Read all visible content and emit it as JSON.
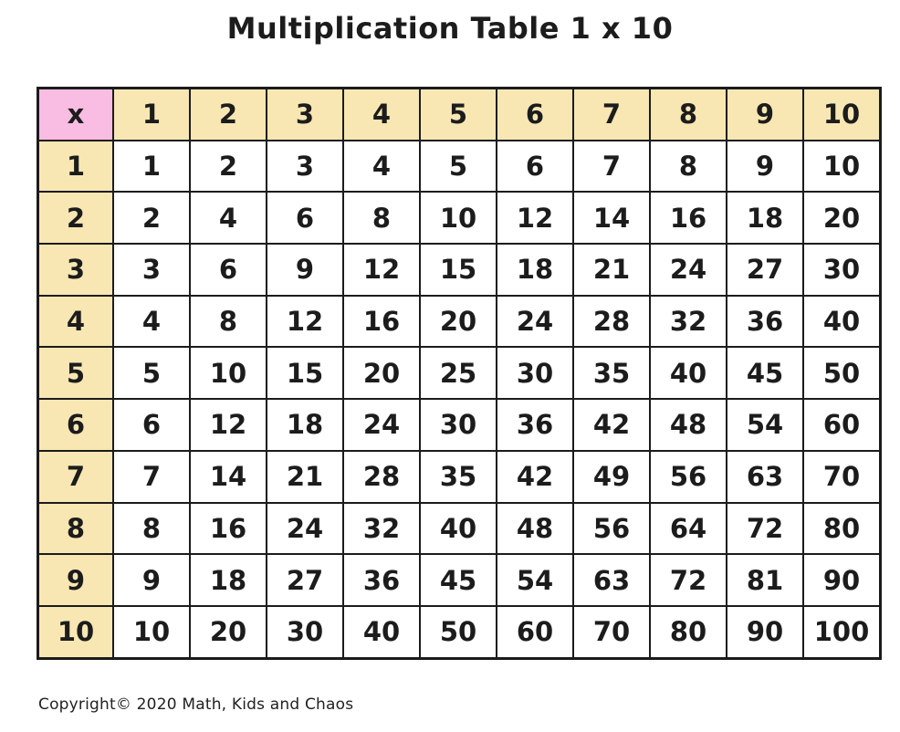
{
  "title": "Multiplication Table 1 x 10",
  "copyright": "Copyright© 2020 Math, Kids and Chaos",
  "colors": {
    "corner_cell_bg": "#f9bce3",
    "header_cell_bg": "#f8e7b3",
    "body_cell_bg": "#ffffff",
    "border": "#1b1b1b",
    "text": "#1c1c1c"
  },
  "table": {
    "corner_label": "x",
    "column_headers": [
      "1",
      "2",
      "3",
      "4",
      "5",
      "6",
      "7",
      "8",
      "9",
      "10"
    ],
    "rows": [
      {
        "label": "1",
        "values": [
          "1",
          "2",
          "3",
          "4",
          "5",
          "6",
          "7",
          "8",
          "9",
          "10"
        ]
      },
      {
        "label": "2",
        "values": [
          "2",
          "4",
          "6",
          "8",
          "10",
          "12",
          "14",
          "16",
          "18",
          "20"
        ]
      },
      {
        "label": "3",
        "values": [
          "3",
          "6",
          "9",
          "12",
          "15",
          "18",
          "21",
          "24",
          "27",
          "30"
        ]
      },
      {
        "label": "4",
        "values": [
          "4",
          "8",
          "12",
          "16",
          "20",
          "24",
          "28",
          "32",
          "36",
          "40"
        ]
      },
      {
        "label": "5",
        "values": [
          "5",
          "10",
          "15",
          "20",
          "25",
          "30",
          "35",
          "40",
          "45",
          "50"
        ]
      },
      {
        "label": "6",
        "values": [
          "6",
          "12",
          "18",
          "24",
          "30",
          "36",
          "42",
          "48",
          "54",
          "60"
        ]
      },
      {
        "label": "7",
        "values": [
          "7",
          "14",
          "21",
          "28",
          "35",
          "42",
          "49",
          "56",
          "63",
          "70"
        ]
      },
      {
        "label": "8",
        "values": [
          "8",
          "16",
          "24",
          "32",
          "40",
          "48",
          "56",
          "64",
          "72",
          "80"
        ]
      },
      {
        "label": "9",
        "values": [
          "9",
          "18",
          "27",
          "36",
          "45",
          "54",
          "63",
          "72",
          "81",
          "90"
        ]
      },
      {
        "label": "10",
        "values": [
          "10",
          "20",
          "30",
          "40",
          "50",
          "60",
          "70",
          "80",
          "90",
          "100"
        ]
      }
    ]
  }
}
